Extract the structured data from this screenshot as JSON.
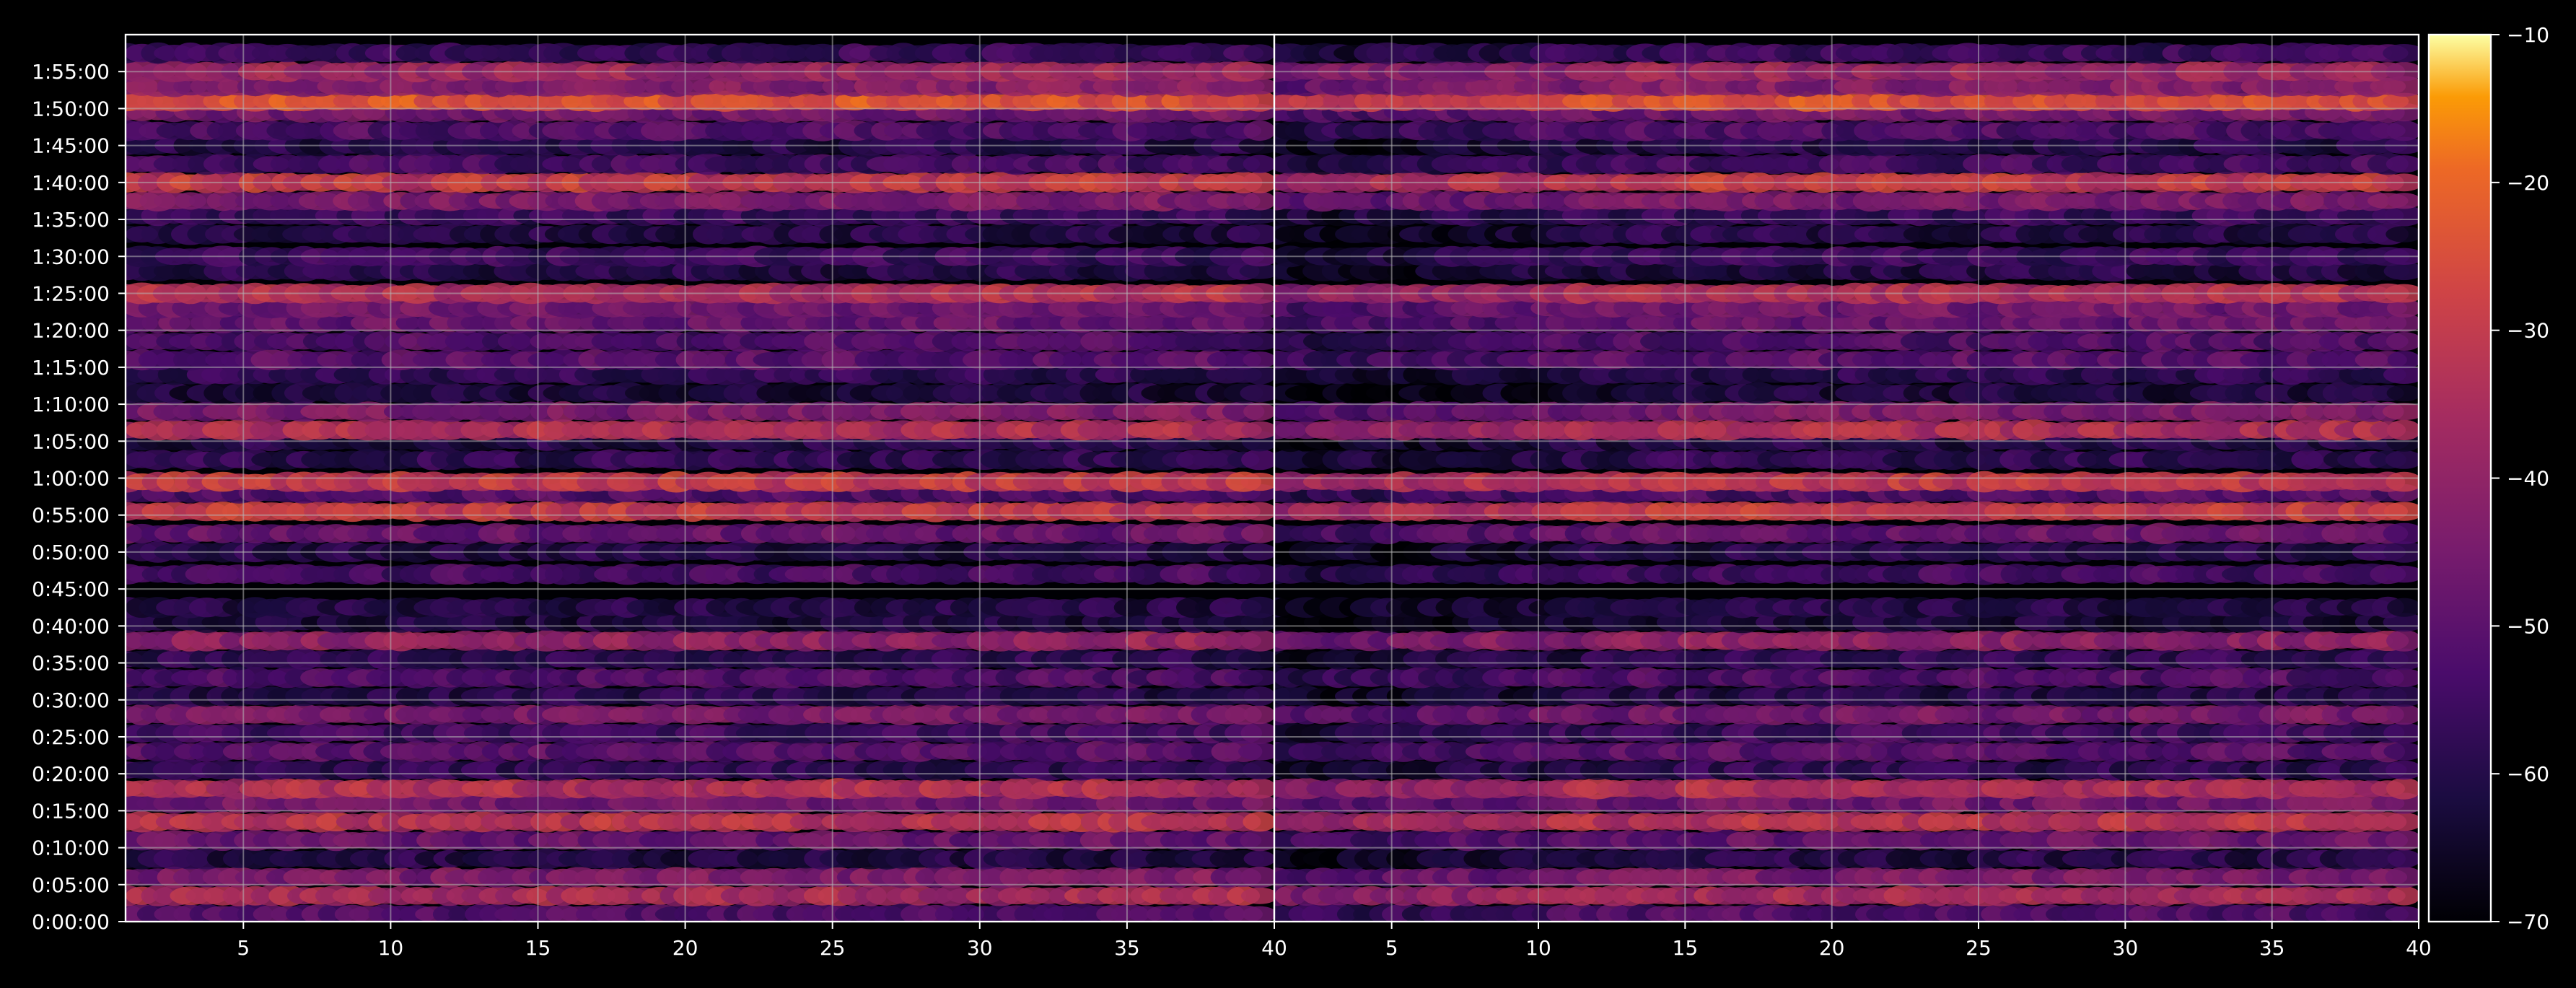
{
  "chart_data": [
    {
      "type": "heatmap",
      "panel": "left",
      "xlim": [
        1,
        40
      ],
      "x_ticks": [
        5,
        10,
        15,
        20,
        25,
        30,
        35,
        40
      ],
      "y_tick_labels": [
        "0:00:00",
        "0:05:00",
        "0:10:00",
        "0:15:00",
        "0:20:00",
        "0:25:00",
        "0:30:00",
        "0:35:00",
        "0:40:00",
        "0:45:00",
        "0:50:00",
        "0:55:00",
        "1:00:00",
        "1:05:00",
        "1:10:00",
        "1:15:00",
        "1:20:00",
        "1:25:00",
        "1:30:00",
        "1:35:00",
        "1:40:00",
        "1:45:00",
        "1:50:00",
        "1:55:00"
      ],
      "ylim_minutes": [
        0,
        120
      ],
      "grid": true,
      "bands": [
        {
          "y_min": 1,
          "level": -52
        },
        {
          "y_min": 3.5,
          "level": -36
        },
        {
          "y_min": 6,
          "level": -44
        },
        {
          "y_min": 8.5,
          "level": -60
        },
        {
          "y_min": 11,
          "level": -48
        },
        {
          "y_min": 13.5,
          "level": -32
        },
        {
          "y_min": 16,
          "level": -46
        },
        {
          "y_min": 18,
          "level": -34
        },
        {
          "y_min": 20.5,
          "level": -58
        },
        {
          "y_min": 23,
          "level": -50
        },
        {
          "y_min": 25.5,
          "level": -55
        },
        {
          "y_min": 28,
          "level": -45
        },
        {
          "y_min": 30.5,
          "level": -60
        },
        {
          "y_min": 33,
          "level": -52
        },
        {
          "y_min": 35.5,
          "level": -58
        },
        {
          "y_min": 38,
          "level": -40
        },
        {
          "y_min": 40.5,
          "level": -62
        },
        {
          "y_min": 42.5,
          "level": -60
        },
        {
          "y_min": 47,
          "level": -54
        },
        {
          "y_min": 50,
          "level": -60
        },
        {
          "y_min": 52.5,
          "level": -48
        },
        {
          "y_min": 55.5,
          "level": -30
        },
        {
          "y_min": 58,
          "level": -52
        },
        {
          "y_min": 59.5,
          "level": -30
        },
        {
          "y_min": 62.5,
          "level": -58
        },
        {
          "y_min": 65,
          "level": -60
        },
        {
          "y_min": 66.5,
          "level": -34
        },
        {
          "y_min": 69,
          "level": -44
        },
        {
          "y_min": 71.5,
          "level": -62
        },
        {
          "y_min": 74,
          "level": -58
        },
        {
          "y_min": 76,
          "level": -50
        },
        {
          "y_min": 78.5,
          "level": -52
        },
        {
          "y_min": 81,
          "level": -48
        },
        {
          "y_min": 83,
          "level": -46
        },
        {
          "y_min": 85,
          "level": -34
        },
        {
          "y_min": 88,
          "level": -60
        },
        {
          "y_min": 90,
          "level": -56
        },
        {
          "y_min": 93,
          "level": -60
        },
        {
          "y_min": 95.5,
          "level": -56
        },
        {
          "y_min": 97.5,
          "level": -44
        },
        {
          "y_min": 100,
          "level": -30
        },
        {
          "y_min": 102.5,
          "level": -54
        },
        {
          "y_min": 105,
          "level": -60
        },
        {
          "y_min": 107,
          "level": -52
        },
        {
          "y_min": 109.5,
          "level": -46
        },
        {
          "y_min": 111,
          "level": -24
        },
        {
          "y_min": 113,
          "level": -42
        },
        {
          "y_min": 115,
          "level": -38
        },
        {
          "y_min": 117.5,
          "level": -56
        }
      ]
    },
    {
      "type": "heatmap",
      "panel": "right",
      "xlim": [
        1,
        40
      ],
      "x_ticks": [
        5,
        10,
        15,
        20,
        25,
        30,
        35,
        40
      ],
      "ylim_minutes": [
        0,
        120
      ],
      "grid": true,
      "bands_note": "same band structure as left panel, darker toward left edge"
    },
    {
      "type": "colorbar",
      "colormap": "inferno",
      "range": [
        -70,
        -10
      ],
      "ticks": [
        "−10",
        "−20",
        "−30",
        "−40",
        "−50",
        "−60",
        "−70"
      ]
    }
  ],
  "colors": {
    "background": "#000000",
    "text": "#ffffff",
    "grid": "#b4b4b4"
  }
}
